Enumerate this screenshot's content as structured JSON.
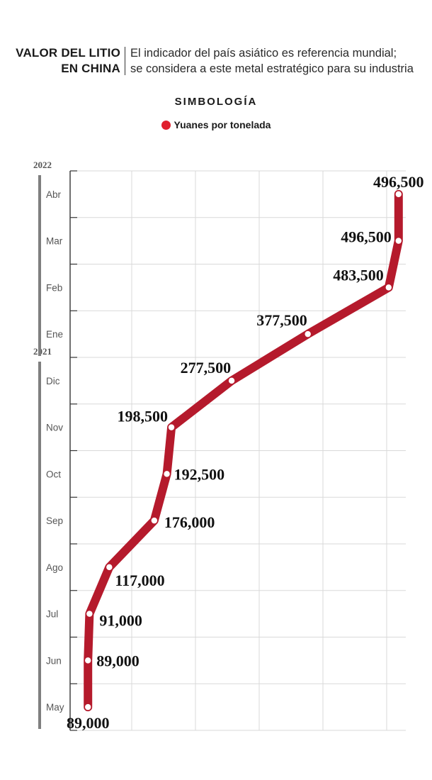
{
  "header": {
    "title_line1": "VALOR DEL LITIO",
    "title_line2": "EN CHINA",
    "subtitle_line1": "El indicador del país asiático es referencia mundial;",
    "subtitle_line2": "se considera a este metal estratégico para su industria"
  },
  "legend": {
    "title": "SIMBOLOGÍA",
    "item_label": "Yuanes por tonelada",
    "item_color": "#e01f2d"
  },
  "colors": {
    "line": "#b51a2c",
    "marker_fill": "#ffffff",
    "grid": "#d9d9d9",
    "axis": "#333333",
    "year_bar": "#7f7f7f",
    "month_label": "#555555"
  },
  "chart_data": {
    "type": "line",
    "orientation": "vertical-time-axis",
    "time_labels_bottom_to_top": [
      "May",
      "Jun",
      "Jul",
      "Ago",
      "Sep",
      "Oct",
      "Nov",
      "Dic",
      "Ene",
      "Feb",
      "Mar",
      "Abr"
    ],
    "year_labels": [
      {
        "label": "2021",
        "from_month_index": 0,
        "to_month_index": 7
      },
      {
        "label": "2022",
        "from_month_index": 8,
        "to_month_index": 11
      }
    ],
    "series": [
      {
        "name": "Yuanes por tonelada",
        "values": [
          89000,
          89000,
          91000,
          117000,
          176000,
          192500,
          198500,
          277500,
          377500,
          483500,
          496500,
          496500
        ],
        "labels": [
          "89,000",
          "89,000",
          "91,000",
          "117,000",
          "176,000",
          "192,500",
          "198,500",
          "277,500",
          "377,500",
          "483,500",
          "496,500",
          "496,500"
        ]
      }
    ],
    "value_axis_range": [
      0,
      500000
    ],
    "grid": true,
    "legend_position": "top-center"
  }
}
